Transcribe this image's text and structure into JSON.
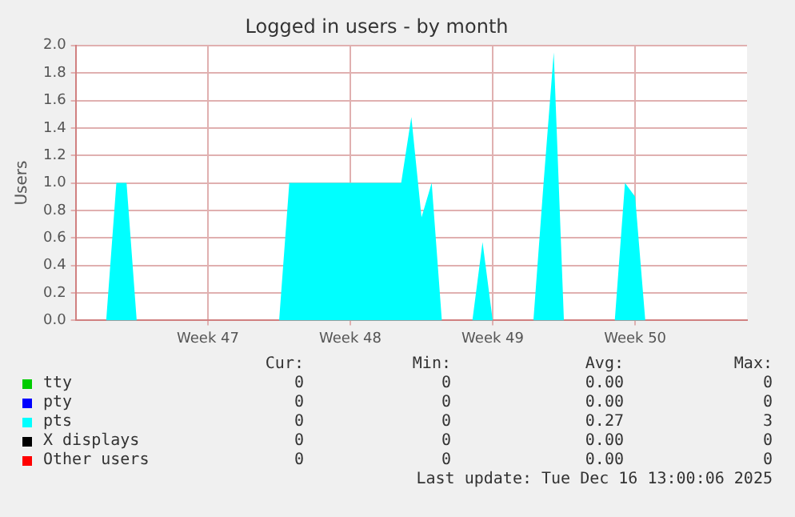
{
  "chart_data": {
    "type": "area",
    "title": "Logged in users - by month",
    "ylabel": "Users",
    "categories": [
      null,
      null,
      null,
      null,
      null,
      null,
      null,
      null,
      null,
      null,
      null,
      null,
      null,
      "Week 47",
      null,
      null,
      null,
      null,
      null,
      null,
      null,
      null,
      null,
      null,
      null,
      null,
      null,
      "Week 48",
      null,
      null,
      null,
      null,
      null,
      null,
      null,
      null,
      null,
      null,
      null,
      null,
      null,
      "Week 49",
      null,
      null,
      null,
      null,
      null,
      null,
      null,
      null,
      null,
      null,
      null,
      null,
      null,
      "Week 50",
      null,
      null,
      null,
      null,
      null,
      null,
      null,
      null,
      null,
      null,
      null
    ],
    "series": [
      {
        "name": "tty",
        "color": "#00cc00",
        "values": [
          null,
          null,
          null,
          null,
          null,
          null,
          null,
          null,
          null,
          null,
          null,
          null,
          null,
          null,
          null,
          null,
          null,
          null,
          null,
          null,
          null,
          null,
          null,
          null,
          null,
          null,
          null,
          null,
          null,
          null,
          null,
          null,
          null,
          null,
          null,
          null,
          null,
          null,
          null,
          null,
          null,
          null,
          null,
          null,
          null,
          null,
          null,
          null,
          null,
          null,
          null,
          null,
          null,
          null,
          null,
          null,
          null,
          null,
          null,
          null,
          null,
          null,
          null,
          null,
          null,
          null,
          null
        ]
      },
      {
        "name": "pty",
        "color": "#0000ff",
        "values": [
          null,
          null,
          null,
          null,
          null,
          null,
          null,
          null,
          null,
          null,
          null,
          null,
          null,
          null,
          null,
          null,
          null,
          null,
          null,
          null,
          null,
          null,
          null,
          null,
          null,
          null,
          null,
          null,
          null,
          null,
          null,
          null,
          null,
          null,
          null,
          null,
          null,
          null,
          null,
          null,
          null,
          null,
          null,
          null,
          null,
          null,
          null,
          null,
          null,
          null,
          null,
          null,
          null,
          null,
          null,
          null,
          null,
          null,
          null,
          null,
          null,
          null,
          null,
          null,
          null,
          null,
          null
        ]
      },
      {
        "name": "pts",
        "color": "#00ffff",
        "values": [
          0,
          0,
          0,
          0,
          1,
          1,
          0,
          0,
          0,
          0,
          0,
          0,
          0,
          0,
          0,
          0,
          0,
          0,
          0,
          0,
          0,
          1,
          1,
          1,
          1,
          1,
          1,
          1,
          1,
          1,
          1,
          1,
          1,
          1.48,
          0.75,
          1,
          0,
          0,
          0,
          0,
          0.57,
          0,
          0,
          0,
          0,
          0,
          1,
          1.95,
          0,
          0,
          0,
          0,
          0,
          0,
          1,
          0.9,
          0,
          0,
          0,
          0,
          0,
          0,
          0,
          0,
          0,
          0,
          0
        ]
      },
      {
        "name": "X displays",
        "color": "#000000",
        "values": [
          null,
          null,
          null,
          null,
          null,
          null,
          null,
          null,
          null,
          null,
          null,
          null,
          null,
          null,
          null,
          null,
          null,
          null,
          null,
          null,
          null,
          null,
          null,
          null,
          null,
          null,
          null,
          null,
          null,
          null,
          null,
          null,
          null,
          null,
          null,
          null,
          null,
          null,
          null,
          null,
          null,
          null,
          null,
          null,
          null,
          null,
          null,
          null,
          null,
          null,
          null,
          null,
          null,
          null,
          null,
          null,
          null,
          null,
          null,
          null,
          null,
          null,
          null,
          null,
          null,
          null,
          null
        ]
      },
      {
        "name": "Other users",
        "color": "#ff0000",
        "values": [
          null,
          null,
          null,
          null,
          null,
          null,
          null,
          null,
          null,
          null,
          null,
          null,
          null,
          null,
          null,
          null,
          null,
          null,
          null,
          null,
          null,
          null,
          null,
          null,
          null,
          null,
          null,
          null,
          null,
          null,
          null,
          null,
          null,
          null,
          null,
          null,
          null,
          null,
          null,
          null,
          null,
          null,
          null,
          null,
          null,
          null,
          null,
          null,
          null,
          null,
          null,
          null,
          null,
          null,
          null,
          null,
          null,
          null,
          null,
          null,
          null,
          null,
          null,
          null,
          null,
          null,
          null
        ]
      }
    ],
    "ylim": [
      0,
      2.0
    ],
    "yticks": [
      {
        "value": 0,
        "label": "0.0"
      },
      {
        "value": 0.2,
        "label": "0.2"
      },
      {
        "value": 0.4,
        "label": "0.4"
      },
      {
        "value": 0.6,
        "label": "0.6"
      },
      {
        "value": 0.8,
        "label": "0.8"
      },
      {
        "value": 1.0,
        "label": "1.0"
      },
      {
        "value": 1.2,
        "label": "1.2"
      },
      {
        "value": 1.4,
        "label": "1.4"
      },
      {
        "value": 1.6,
        "label": "1.6"
      },
      {
        "value": 1.8,
        "label": "1.8"
      },
      {
        "value": 2.0,
        "label": "2.0"
      }
    ],
    "grid": true,
    "marker": "none",
    "legend": "bottom",
    "annotations": [
      "Cur:",
      "Min:",
      "Avg:",
      "Max:",
      "0",
      "0",
      "0.00",
      "0",
      "0",
      "0",
      "0.00",
      "0",
      "0",
      "0",
      "0.27",
      "3",
      "0",
      "0",
      "0.00",
      "0",
      "0",
      "0",
      "0.00",
      "0",
      "Last update: Tue Dec 16 13:00:06 2025"
    ]
  }
}
